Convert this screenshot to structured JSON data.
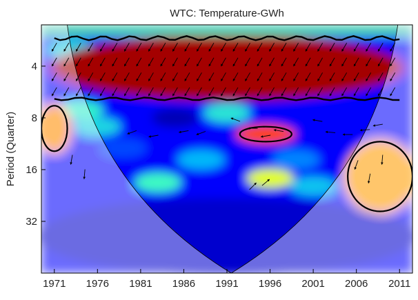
{
  "chart_data": {
    "type": "heatmap",
    "title": "WTC: Temperature-GWh",
    "xlabel": "",
    "ylabel": "Period (Quarter)",
    "x_ticks": [
      "1971",
      "1976",
      "1981",
      "1986",
      "1991",
      "1996",
      "2001",
      "2006",
      "2011"
    ],
    "x_tick_values": [
      1971,
      1976,
      1981,
      1986,
      1991,
      1996,
      2001,
      2006,
      2011
    ],
    "xlim": [
      1969.5,
      2012.5
    ],
    "y_ticks": [
      "4",
      "8",
      "16",
      "32"
    ],
    "y_tick_values": [
      4,
      8,
      16,
      32
    ],
    "ylim": [
      2.3,
      64
    ],
    "y_scale": "log2",
    "y_reversed": true,
    "colormap": [
      "#00008f",
      "#0000ff",
      "#00b0ff",
      "#40ffbf",
      "#ffff00",
      "#ff8000",
      "#ff0000",
      "#800000"
    ],
    "cone_of_influence_color": "#ffffff",
    "regions": [
      {
        "name": "strong-coherence-band",
        "x": [
          1971,
          2011
        ],
        "period": [
          2.7,
          6.2
        ],
        "level": 0.96
      },
      {
        "name": "coherence-island-mid",
        "x": [
          1992.5,
          1998.5
        ],
        "period": [
          9.0,
          11.0
        ],
        "level": 0.78
      },
      {
        "name": "coherence-left-edge",
        "x": [
          1969.5,
          1972.5
        ],
        "period": [
          6.8,
          12.5
        ],
        "level": 0.7
      },
      {
        "name": "coherence-right-lower",
        "x": [
          2005,
          2012.5
        ],
        "period": [
          11,
          28
        ],
        "level": 0.68
      },
      {
        "name": "low-coherence-band",
        "x": [
          1969.5,
          2012.5
        ],
        "period": [
          24,
          64
        ],
        "level": 0.08
      }
    ]
  }
}
